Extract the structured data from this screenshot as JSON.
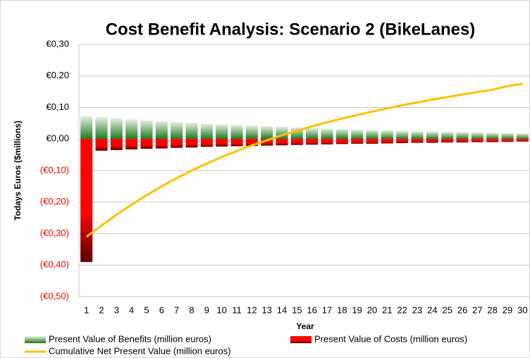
{
  "chart_data": {
    "type": "bar-line",
    "title": "Cost Benefit Analysis: Scenario 2 (BikeLanes)",
    "x_label": "Year",
    "y_label": "Todays  Euros  ($millions)",
    "categories": [
      "1",
      "2",
      "3",
      "4",
      "5",
      "6",
      "7",
      "8",
      "9",
      "10",
      "11",
      "12",
      "13",
      "14",
      "15",
      "16",
      "17",
      "18",
      "19",
      "20",
      "21",
      "22",
      "23",
      "24",
      "25",
      "26",
      "27",
      "28",
      "29",
      "30"
    ],
    "series": [
      {
        "name": "Present Value of Benefits (million euros)",
        "kind": "bar",
        "color": "#1e7a1e",
        "values": [
          0.073,
          0.07,
          0.066,
          0.063,
          0.06,
          0.057,
          0.054,
          0.052,
          0.049,
          0.047,
          0.045,
          0.043,
          0.041,
          0.039,
          0.037,
          0.035,
          0.033,
          0.032,
          0.03,
          0.029,
          0.028,
          0.026,
          0.025,
          0.024,
          0.023,
          0.022,
          0.021,
          0.02,
          0.019,
          0.018
        ]
      },
      {
        "name": "Present Value of Costs (million euros)",
        "kind": "bar",
        "color": "#ff0000",
        "values": [
          -0.39,
          -0.037,
          -0.035,
          -0.033,
          -0.031,
          -0.03,
          -0.028,
          -0.027,
          -0.025,
          -0.024,
          -0.023,
          -0.022,
          -0.021,
          -0.02,
          -0.019,
          -0.018,
          -0.017,
          -0.016,
          -0.015,
          -0.015,
          -0.014,
          -0.013,
          -0.012,
          -0.012,
          -0.011,
          -0.011,
          -0.01,
          -0.01,
          -0.009,
          -0.008
        ]
      },
      {
        "name": "Cumulative Net Present Value (million euros)",
        "kind": "line",
        "color": "#ffc000",
        "values": [
          -0.31,
          -0.274,
          -0.24,
          -0.208,
          -0.178,
          -0.15,
          -0.124,
          -0.1,
          -0.078,
          -0.057,
          -0.038,
          -0.02,
          -0.004,
          0.012,
          0.026,
          0.04,
          0.053,
          0.065,
          0.076,
          0.087,
          0.097,
          0.107,
          0.116,
          0.125,
          0.133,
          0.141,
          0.149,
          0.156,
          0.168,
          0.175
        ]
      }
    ],
    "ylim": [
      -0.5,
      0.3
    ],
    "yticks": [
      {
        "value": -0.5,
        "label": "(€0,50)"
      },
      {
        "value": -0.4,
        "label": "(€0,40)"
      },
      {
        "value": -0.3,
        "label": "(€0,30)"
      },
      {
        "value": -0.2,
        "label": "(€0,20)"
      },
      {
        "value": -0.1,
        "label": "(€0,10)"
      },
      {
        "value": 0,
        "label": "€0,00"
      },
      {
        "value": 0.1,
        "label": "€0,10"
      },
      {
        "value": 0.2,
        "label": "€0,20"
      },
      {
        "value": 0.3,
        "label": "€0,30"
      }
    ],
    "negative_label_color": "#ff0000",
    "grid": true,
    "legend": "bottom"
  }
}
